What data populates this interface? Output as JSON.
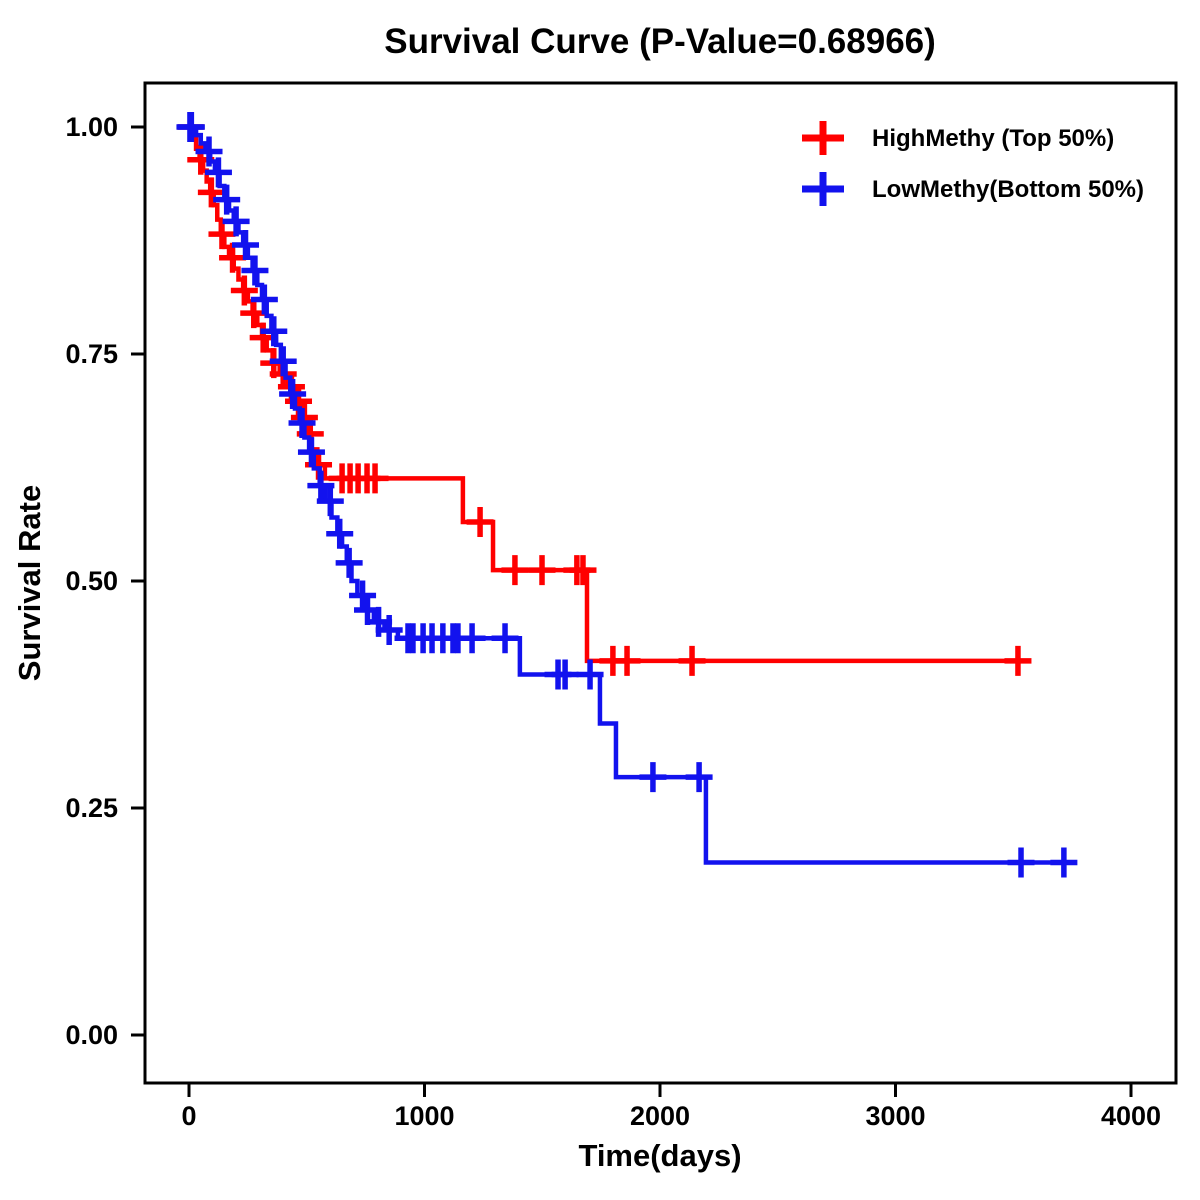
{
  "title": "Survival Curve (P-Value=0.68966)",
  "axes": {
    "x": {
      "label": "Time(days)",
      "tick_labels": [
        "0",
        "1000",
        "2000",
        "3000",
        "4000"
      ],
      "tick_values": [
        0,
        1000,
        2000,
        3000,
        4000
      ],
      "range": [
        0,
        4000
      ]
    },
    "y": {
      "label": "Survival Rate",
      "tick_labels": [
        "1.00",
        "0.75",
        "0.50",
        "0.25",
        "0.00"
      ],
      "tick_values": [
        1.0,
        0.75,
        0.5,
        0.25,
        0.0
      ],
      "range": [
        0.0,
        1.0
      ]
    }
  },
  "legend": {
    "position": "top-right",
    "items": [
      {
        "label": "HighMethy (Top 50%)",
        "color": "#FF0000",
        "marker": "plus-icon"
      },
      {
        "label": "LowMethy(Bottom 50%)",
        "color": "#1212EE",
        "marker": "plus-icon"
      }
    ]
  },
  "chart_data": {
    "type": "line",
    "subtype": "kaplan-meier-step-survival",
    "title": "Survival Curve (P-Value=0.68966)",
    "xlabel": "Time(days)",
    "ylabel": "Survival Rate",
    "xlim": [
      0,
      4000
    ],
    "ylim": [
      0.0,
      1.0
    ],
    "grid": false,
    "p_value": 0.68966,
    "series": [
      {
        "name": "HighMethy (Top 50%)",
        "color": "#FF0000",
        "end_time": 3560,
        "steps": [
          [
            0,
            1.0
          ],
          [
            15,
            0.988
          ],
          [
            30,
            0.976
          ],
          [
            45,
            0.964
          ],
          [
            60,
            0.952
          ],
          [
            75,
            0.94
          ],
          [
            90,
            0.928
          ],
          [
            105,
            0.914
          ],
          [
            120,
            0.898
          ],
          [
            135,
            0.882
          ],
          [
            150,
            0.868
          ],
          [
            170,
            0.856
          ],
          [
            190,
            0.844
          ],
          [
            210,
            0.832
          ],
          [
            230,
            0.82
          ],
          [
            250,
            0.808
          ],
          [
            270,
            0.795
          ],
          [
            290,
            0.782
          ],
          [
            310,
            0.768
          ],
          [
            330,
            0.754
          ],
          [
            355,
            0.74
          ],
          [
            385,
            0.728
          ],
          [
            420,
            0.714
          ],
          [
            455,
            0.698
          ],
          [
            480,
            0.68
          ],
          [
            500,
            0.662
          ],
          [
            520,
            0.645
          ],
          [
            545,
            0.628
          ],
          [
            577,
            0.613
          ],
          [
            1163,
            0.565
          ],
          [
            1291,
            0.512
          ],
          [
            1690,
            0.412
          ]
        ],
        "censor_times": [
          8,
          50,
          95,
          140,
          185,
          235,
          275,
          315,
          360,
          400,
          435,
          465,
          490,
          515,
          550,
          650,
          684,
          718,
          756,
          790,
          1236,
          1384,
          1499,
          1647,
          1673,
          1800,
          1860,
          2136,
          3520
        ]
      },
      {
        "name": "LowMethy(Bottom 50%)",
        "color": "#1212EE",
        "end_time": 3770,
        "steps": [
          [
            0,
            1.0
          ],
          [
            30,
            0.991
          ],
          [
            50,
            0.982
          ],
          [
            70,
            0.973
          ],
          [
            90,
            0.962
          ],
          [
            110,
            0.95
          ],
          [
            130,
            0.935
          ],
          [
            150,
            0.92
          ],
          [
            170,
            0.908
          ],
          [
            190,
            0.896
          ],
          [
            210,
            0.884
          ],
          [
            230,
            0.87
          ],
          [
            250,
            0.856
          ],
          [
            270,
            0.842
          ],
          [
            290,
            0.826
          ],
          [
            310,
            0.81
          ],
          [
            330,
            0.792
          ],
          [
            350,
            0.775
          ],
          [
            370,
            0.76
          ],
          [
            390,
            0.742
          ],
          [
            410,
            0.724
          ],
          [
            430,
            0.706
          ],
          [
            450,
            0.69
          ],
          [
            470,
            0.674
          ],
          [
            490,
            0.658
          ],
          [
            510,
            0.642
          ],
          [
            530,
            0.624
          ],
          [
            555,
            0.605
          ],
          [
            580,
            0.588
          ],
          [
            605,
            0.57
          ],
          [
            630,
            0.552
          ],
          [
            650,
            0.538
          ],
          [
            670,
            0.52
          ],
          [
            690,
            0.5
          ],
          [
            715,
            0.484
          ],
          [
            745,
            0.468
          ],
          [
            785,
            0.455
          ],
          [
            830,
            0.446
          ],
          [
            887,
            0.437
          ],
          [
            1405,
            0.397
          ],
          [
            1745,
            0.343
          ],
          [
            1813,
            0.284
          ],
          [
            2195,
            0.19
          ]
        ],
        "censor_times": [
          4,
          10,
          85,
          125,
          160,
          200,
          240,
          280,
          320,
          360,
          400,
          440,
          480,
          520,
          560,
          600,
          640,
          680,
          737,
          758,
          805,
          850,
          930,
          951,
          994,
          1032,
          1078,
          1121,
          1142,
          1202,
          1342,
          1567,
          1597,
          1703,
          1970,
          2166,
          3533,
          3715
        ]
      }
    ]
  }
}
